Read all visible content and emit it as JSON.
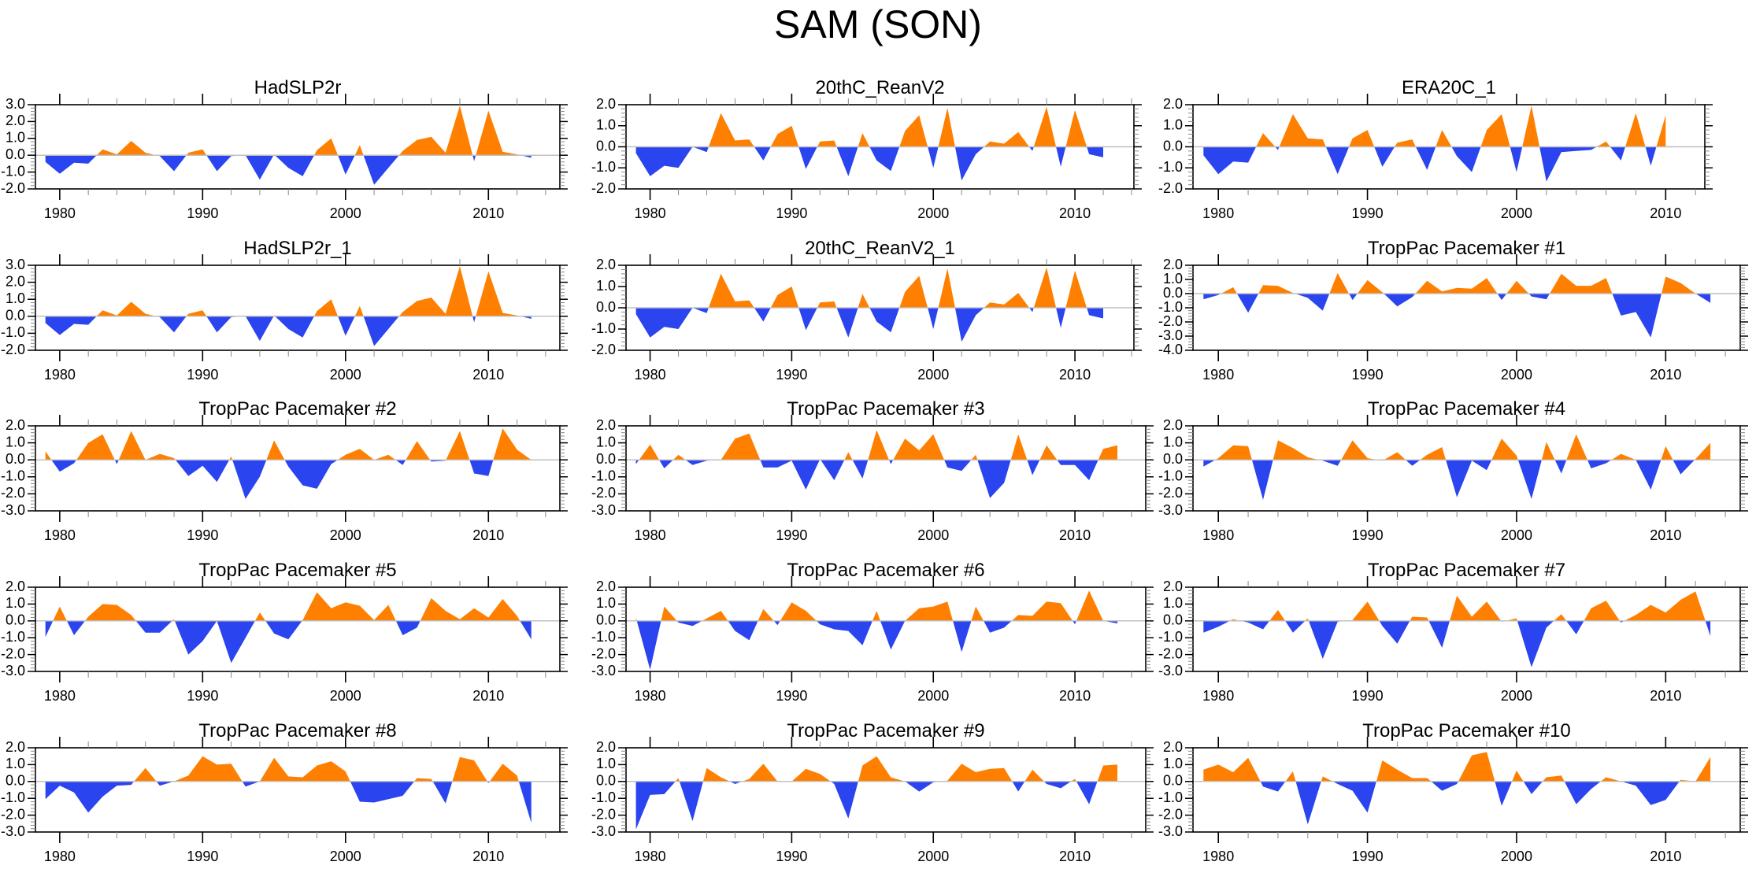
{
  "chart_data": {
    "type": "area",
    "title": "SAM (SON)",
    "colors": {
      "positive": "#ff8000",
      "negative": "#2a44f0",
      "zero_line": "#c0c0c0",
      "frame": "#000000"
    },
    "xlim": [
      1978,
      2015
    ],
    "x_major_ticks": [
      1980,
      1990,
      2000,
      2010
    ],
    "x_tick_labels": [
      "1980",
      "1990",
      "2000",
      "2010"
    ],
    "panels": [
      {
        "title": "HadSLP2r",
        "ylim": [
          -2.0,
          3.0
        ],
        "y_tick_labels": [
          "3.0",
          "2.0",
          "1.0",
          "0.0",
          "-1.0",
          "-2.0"
        ],
        "x_start": 1979,
        "values": [
          -0.4,
          -1.1,
          -0.45,
          -0.5,
          0.35,
          0.05,
          0.85,
          0.15,
          -0.05,
          -0.95,
          0.15,
          0.35,
          -0.95,
          -0.05,
          0.0,
          -1.45,
          0.05,
          -0.75,
          -1.25,
          0.3,
          1.0,
          -1.15,
          0.6,
          -1.75,
          -0.75,
          0.25,
          0.9,
          1.1,
          0.15,
          2.95,
          -0.35,
          2.65,
          0.2,
          0.05,
          -0.15
        ]
      },
      {
        "title": "20thC_ReanV2",
        "ylim": [
          -2.0,
          2.0
        ],
        "y_tick_labels": [
          "2.0",
          "1.0",
          "0.0",
          "-1.0",
          "-2.0"
        ],
        "x_start": 1979,
        "values": [
          -0.3,
          -1.4,
          -0.9,
          -1.0,
          0.0,
          -0.25,
          1.6,
          0.3,
          0.35,
          -0.65,
          0.6,
          1.0,
          -1.05,
          0.25,
          0.3,
          -1.4,
          0.65,
          -0.65,
          -1.15,
          0.75,
          1.5,
          -1.0,
          1.85,
          -1.6,
          -0.35,
          0.25,
          0.15,
          0.7,
          -0.2,
          1.9,
          -0.95,
          1.75,
          -0.35,
          -0.5
        ]
      },
      {
        "title": "ERA20C_1",
        "ylim": [
          -2.0,
          2.0
        ],
        "y_tick_labels": [
          "2.0",
          "1.0",
          "0.0",
          "-1.0",
          "-2.0"
        ],
        "x_start": 1979,
        "values": [
          -0.4,
          -1.3,
          -0.7,
          -0.75,
          0.65,
          -0.15,
          1.55,
          0.4,
          0.35,
          -1.3,
          0.4,
          0.8,
          -0.95,
          0.2,
          0.35,
          -1.1,
          0.8,
          -0.45,
          -1.2,
          0.8,
          1.55,
          -1.2,
          1.95,
          -1.65,
          -0.25,
          -0.2,
          -0.15,
          0.25,
          -0.65,
          1.6,
          -0.9,
          1.5
        ]
      },
      {
        "title": "HadSLP2r_1",
        "ylim": [
          -2.0,
          3.0
        ],
        "y_tick_labels": [
          "3.0",
          "2.0",
          "1.0",
          "0.0",
          "-1.0",
          "-2.0"
        ],
        "x_start": 1979,
        "values": [
          -0.4,
          -1.1,
          -0.45,
          -0.5,
          0.35,
          0.05,
          0.85,
          0.15,
          -0.05,
          -0.95,
          0.15,
          0.35,
          -0.95,
          -0.05,
          0.0,
          -1.45,
          0.05,
          -0.75,
          -1.25,
          0.3,
          1.0,
          -1.15,
          0.6,
          -1.75,
          -0.75,
          0.25,
          0.9,
          1.1,
          0.15,
          2.95,
          -0.35,
          2.65,
          0.2,
          0.05,
          -0.15
        ]
      },
      {
        "title": "20thC_ReanV2_1",
        "ylim": [
          -2.0,
          2.0
        ],
        "y_tick_labels": [
          "2.0",
          "1.0",
          "0.0",
          "-1.0",
          "-2.0"
        ],
        "x_start": 1979,
        "values": [
          -0.3,
          -1.4,
          -0.9,
          -1.0,
          0.0,
          -0.25,
          1.6,
          0.3,
          0.35,
          -0.65,
          0.6,
          1.0,
          -1.05,
          0.25,
          0.3,
          -1.4,
          0.65,
          -0.65,
          -1.15,
          0.75,
          1.5,
          -1.0,
          1.85,
          -1.6,
          -0.35,
          0.25,
          0.15,
          0.7,
          -0.2,
          1.9,
          -0.95,
          1.75,
          -0.35,
          -0.5
        ]
      },
      {
        "title": "TropPac Pacemaker #1",
        "ylim": [
          -4.0,
          2.0
        ],
        "y_tick_labels": [
          "2.0",
          "1.0",
          "0.0",
          "-1.0",
          "-2.0",
          "-3.0",
          "-4.0"
        ],
        "x_start": 1979,
        "values": [
          -0.4,
          -0.1,
          0.45,
          -1.35,
          0.6,
          0.55,
          0.05,
          -0.3,
          -1.2,
          1.45,
          -0.45,
          0.95,
          0.1,
          -0.9,
          -0.25,
          0.9,
          0.15,
          0.4,
          0.35,
          1.1,
          -0.45,
          0.9,
          -0.2,
          -0.4,
          1.4,
          0.55,
          0.55,
          1.1,
          -1.55,
          -1.3,
          -3.1,
          1.2,
          0.75,
          0.0,
          -0.65
        ]
      },
      {
        "title": "TropPac Pacemaker #2",
        "ylim": [
          -3.0,
          2.0
        ],
        "y_tick_labels": [
          "2.0",
          "1.0",
          "0.0",
          "-1.0",
          "-2.0",
          "-3.0"
        ],
        "x_start": 1979,
        "values": [
          0.5,
          -0.7,
          -0.2,
          1.0,
          1.5,
          -0.25,
          1.7,
          0.0,
          0.35,
          0.1,
          -0.95,
          -0.35,
          -1.3,
          0.2,
          -2.3,
          -1.0,
          1.15,
          -0.4,
          -1.5,
          -1.7,
          -0.25,
          0.3,
          0.65,
          0.0,
          0.3,
          -0.3,
          1.1,
          -0.1,
          -0.05,
          1.7,
          -0.8,
          -0.95,
          1.85,
          0.6,
          0.0
        ]
      },
      {
        "title": "TropPac Pacemaker #3",
        "ylim": [
          -3.0,
          2.0
        ],
        "y_tick_labels": [
          "2.0",
          "1.0",
          "0.0",
          "-1.0",
          "-2.0",
          "-3.0"
        ],
        "x_start": 1979,
        "values": [
          -0.25,
          0.9,
          -0.5,
          0.3,
          -0.3,
          -0.05,
          0.0,
          1.25,
          1.55,
          -0.45,
          -0.45,
          -0.05,
          -1.75,
          0.05,
          -1.2,
          0.45,
          -1.1,
          1.75,
          -0.25,
          1.25,
          0.55,
          1.5,
          -0.45,
          -0.65,
          0.3,
          -2.25,
          -1.35,
          1.5,
          -0.9,
          0.85,
          -0.3,
          -0.3,
          -1.2,
          0.65,
          0.85
        ]
      },
      {
        "title": "TropPac Pacemaker #4",
        "ylim": [
          -3.0,
          2.0
        ],
        "y_tick_labels": [
          "2.0",
          "1.0",
          "0.0",
          "-1.0",
          "-2.0",
          "-3.0"
        ],
        "x_start": 1979,
        "values": [
          -0.4,
          0.1,
          0.85,
          0.8,
          -2.35,
          1.15,
          0.7,
          0.15,
          -0.05,
          -0.35,
          1.15,
          0.1,
          -0.05,
          0.45,
          -0.35,
          0.3,
          0.75,
          -2.2,
          -0.05,
          -0.6,
          1.25,
          0.25,
          -2.3,
          1.05,
          -0.8,
          1.5,
          -0.5,
          -0.2,
          0.35,
          0.0,
          -1.75,
          0.8,
          -0.85,
          0.05,
          1.0
        ]
      },
      {
        "title": "TropPac Pacemaker #5",
        "ylim": [
          -3.0,
          2.0
        ],
        "y_tick_labels": [
          "2.0",
          "1.0",
          "0.0",
          "-1.0",
          "-2.0",
          "-3.0"
        ],
        "x_start": 1979,
        "values": [
          -0.95,
          0.85,
          -0.85,
          0.25,
          1.0,
          0.95,
          0.35,
          -0.7,
          -0.7,
          0.1,
          -2.0,
          -1.2,
          0.0,
          -2.5,
          -1.0,
          0.5,
          -0.75,
          -1.1,
          0.05,
          1.7,
          0.75,
          1.1,
          0.9,
          0.05,
          0.95,
          -0.85,
          -0.4,
          1.35,
          0.6,
          0.1,
          0.75,
          0.2,
          1.3,
          0.3,
          -1.1
        ]
      },
      {
        "title": "TropPac Pacemaker #6",
        "ylim": [
          -3.0,
          2.0
        ],
        "y_tick_labels": [
          "2.0",
          "1.0",
          "0.0",
          "-1.0",
          "-2.0",
          "-3.0"
        ],
        "x_start": 1979,
        "values": [
          0.2,
          -2.9,
          0.85,
          -0.1,
          -0.3,
          0.15,
          0.6,
          -0.6,
          -1.15,
          0.7,
          -0.25,
          1.1,
          0.6,
          -0.2,
          -0.5,
          -0.6,
          -1.45,
          0.6,
          -1.7,
          0.0,
          0.75,
          0.85,
          1.15,
          -1.85,
          0.85,
          -0.7,
          -0.4,
          0.35,
          0.3,
          1.15,
          1.05,
          -0.2,
          1.8,
          0.0,
          -0.15
        ]
      },
      {
        "title": "TropPac Pacemaker #7",
        "ylim": [
          -3.0,
          2.0
        ],
        "y_tick_labels": [
          "2.0",
          "1.0",
          "0.0",
          "-1.0",
          "-2.0",
          "-3.0"
        ],
        "x_start": 1979,
        "values": [
          -0.7,
          -0.35,
          0.1,
          -0.1,
          -0.5,
          0.65,
          -0.7,
          0.15,
          -2.25,
          -0.05,
          0.05,
          1.15,
          -0.3,
          -1.35,
          0.25,
          0.2,
          -1.6,
          1.5,
          0.25,
          1.15,
          -0.05,
          0.15,
          -2.75,
          -0.4,
          0.4,
          -0.8,
          0.75,
          1.2,
          -0.1,
          0.35,
          0.95,
          0.5,
          1.25,
          1.75,
          -0.9
        ]
      },
      {
        "title": "TropPac Pacemaker #8",
        "ylim": [
          -3.0,
          2.0
        ],
        "y_tick_labels": [
          "2.0",
          "1.0",
          "0.0",
          "-1.0",
          "-2.0",
          "-3.0"
        ],
        "x_start": 1979,
        "values": [
          -1.05,
          -0.25,
          -0.65,
          -1.85,
          -0.9,
          -0.25,
          -0.2,
          0.8,
          -0.25,
          0.0,
          0.35,
          1.5,
          1.0,
          1.05,
          -0.3,
          0.0,
          1.4,
          0.3,
          0.25,
          0.95,
          1.2,
          0.6,
          -1.2,
          -1.25,
          -1.05,
          -0.85,
          0.2,
          0.15,
          -1.3,
          1.45,
          1.25,
          -0.1,
          1.05,
          0.35,
          -2.45
        ]
      },
      {
        "title": "TropPac Pacemaker #9",
        "ylim": [
          -3.0,
          2.0
        ],
        "y_tick_labels": [
          "2.0",
          "1.0",
          "0.0",
          "-1.0",
          "-2.0",
          "-3.0"
        ],
        "x_start": 1979,
        "values": [
          -2.85,
          -0.8,
          -0.75,
          0.2,
          -2.35,
          0.8,
          0.25,
          -0.15,
          0.15,
          1.05,
          0.0,
          0.0,
          0.75,
          0.45,
          -0.15,
          -2.2,
          0.95,
          1.5,
          0.25,
          0.0,
          -0.6,
          -0.05,
          0.05,
          1.05,
          0.55,
          0.75,
          0.8,
          -0.6,
          0.7,
          -0.15,
          -0.4,
          0.15,
          -1.35,
          0.95,
          1.0
        ]
      },
      {
        "title": "TropPac Pacemaker #10",
        "ylim": [
          -3.0,
          2.0
        ],
        "y_tick_labels": [
          "2.0",
          "1.0",
          "0.0",
          "-1.0",
          "-2.0",
          "-3.0"
        ],
        "x_start": 1979,
        "values": [
          0.7,
          1.0,
          0.55,
          1.4,
          -0.3,
          -0.6,
          0.6,
          -2.55,
          0.3,
          -0.15,
          -0.55,
          -1.85,
          1.25,
          0.7,
          0.2,
          0.2,
          -0.55,
          -0.15,
          1.55,
          1.75,
          -1.45,
          0.65,
          -0.75,
          0.25,
          0.35,
          -1.35,
          -0.45,
          0.25,
          0.0,
          -0.25,
          -1.4,
          -1.1,
          0.1,
          0.0,
          1.45
        ]
      }
    ]
  }
}
